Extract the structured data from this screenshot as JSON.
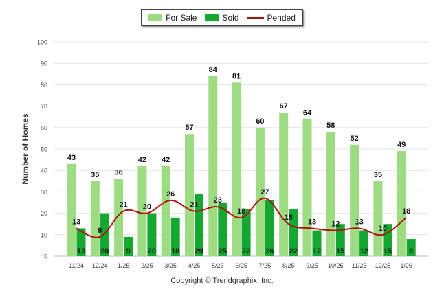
{
  "chart_data": {
    "type": "bar",
    "categories": [
      "11/24",
      "12/24",
      "1/25",
      "2/25",
      "3/25",
      "4/25",
      "5/25",
      "6/25",
      "7/25",
      "8/25",
      "9/25",
      "10/25",
      "11/25",
      "12/25",
      "1/26"
    ],
    "series": [
      {
        "name": "For Sale",
        "kind": "bar",
        "color": "#9ddc82",
        "values": [
          43,
          35,
          36,
          42,
          42,
          57,
          84,
          81,
          60,
          67,
          64,
          58,
          52,
          35,
          49
        ]
      },
      {
        "name": "Sold",
        "kind": "bar",
        "color": "#15a830",
        "values": [
          13,
          20,
          9,
          20,
          18,
          29,
          25,
          22,
          26,
          22,
          12,
          15,
          12,
          15,
          8
        ]
      },
      {
        "name": "Pended",
        "kind": "line",
        "color": "#b01010",
        "values": [
          13,
          9,
          21,
          20,
          26,
          21,
          23,
          18,
          27,
          15,
          13,
          12,
          13,
          10,
          18
        ]
      }
    ],
    "ylabel": "Number of Homes",
    "xlabel": "",
    "ylim": [
      0,
      100
    ],
    "yticks": [
      0,
      10,
      20,
      30,
      40,
      50,
      60,
      70,
      80,
      90,
      100
    ],
    "grid": true,
    "legend_position": "top-center"
  },
  "legend": {
    "for_sale": "For Sale",
    "sold": "Sold",
    "pended": "Pended"
  },
  "footer": {
    "copyright": "Copyright © Trendgraphix, Inc."
  }
}
